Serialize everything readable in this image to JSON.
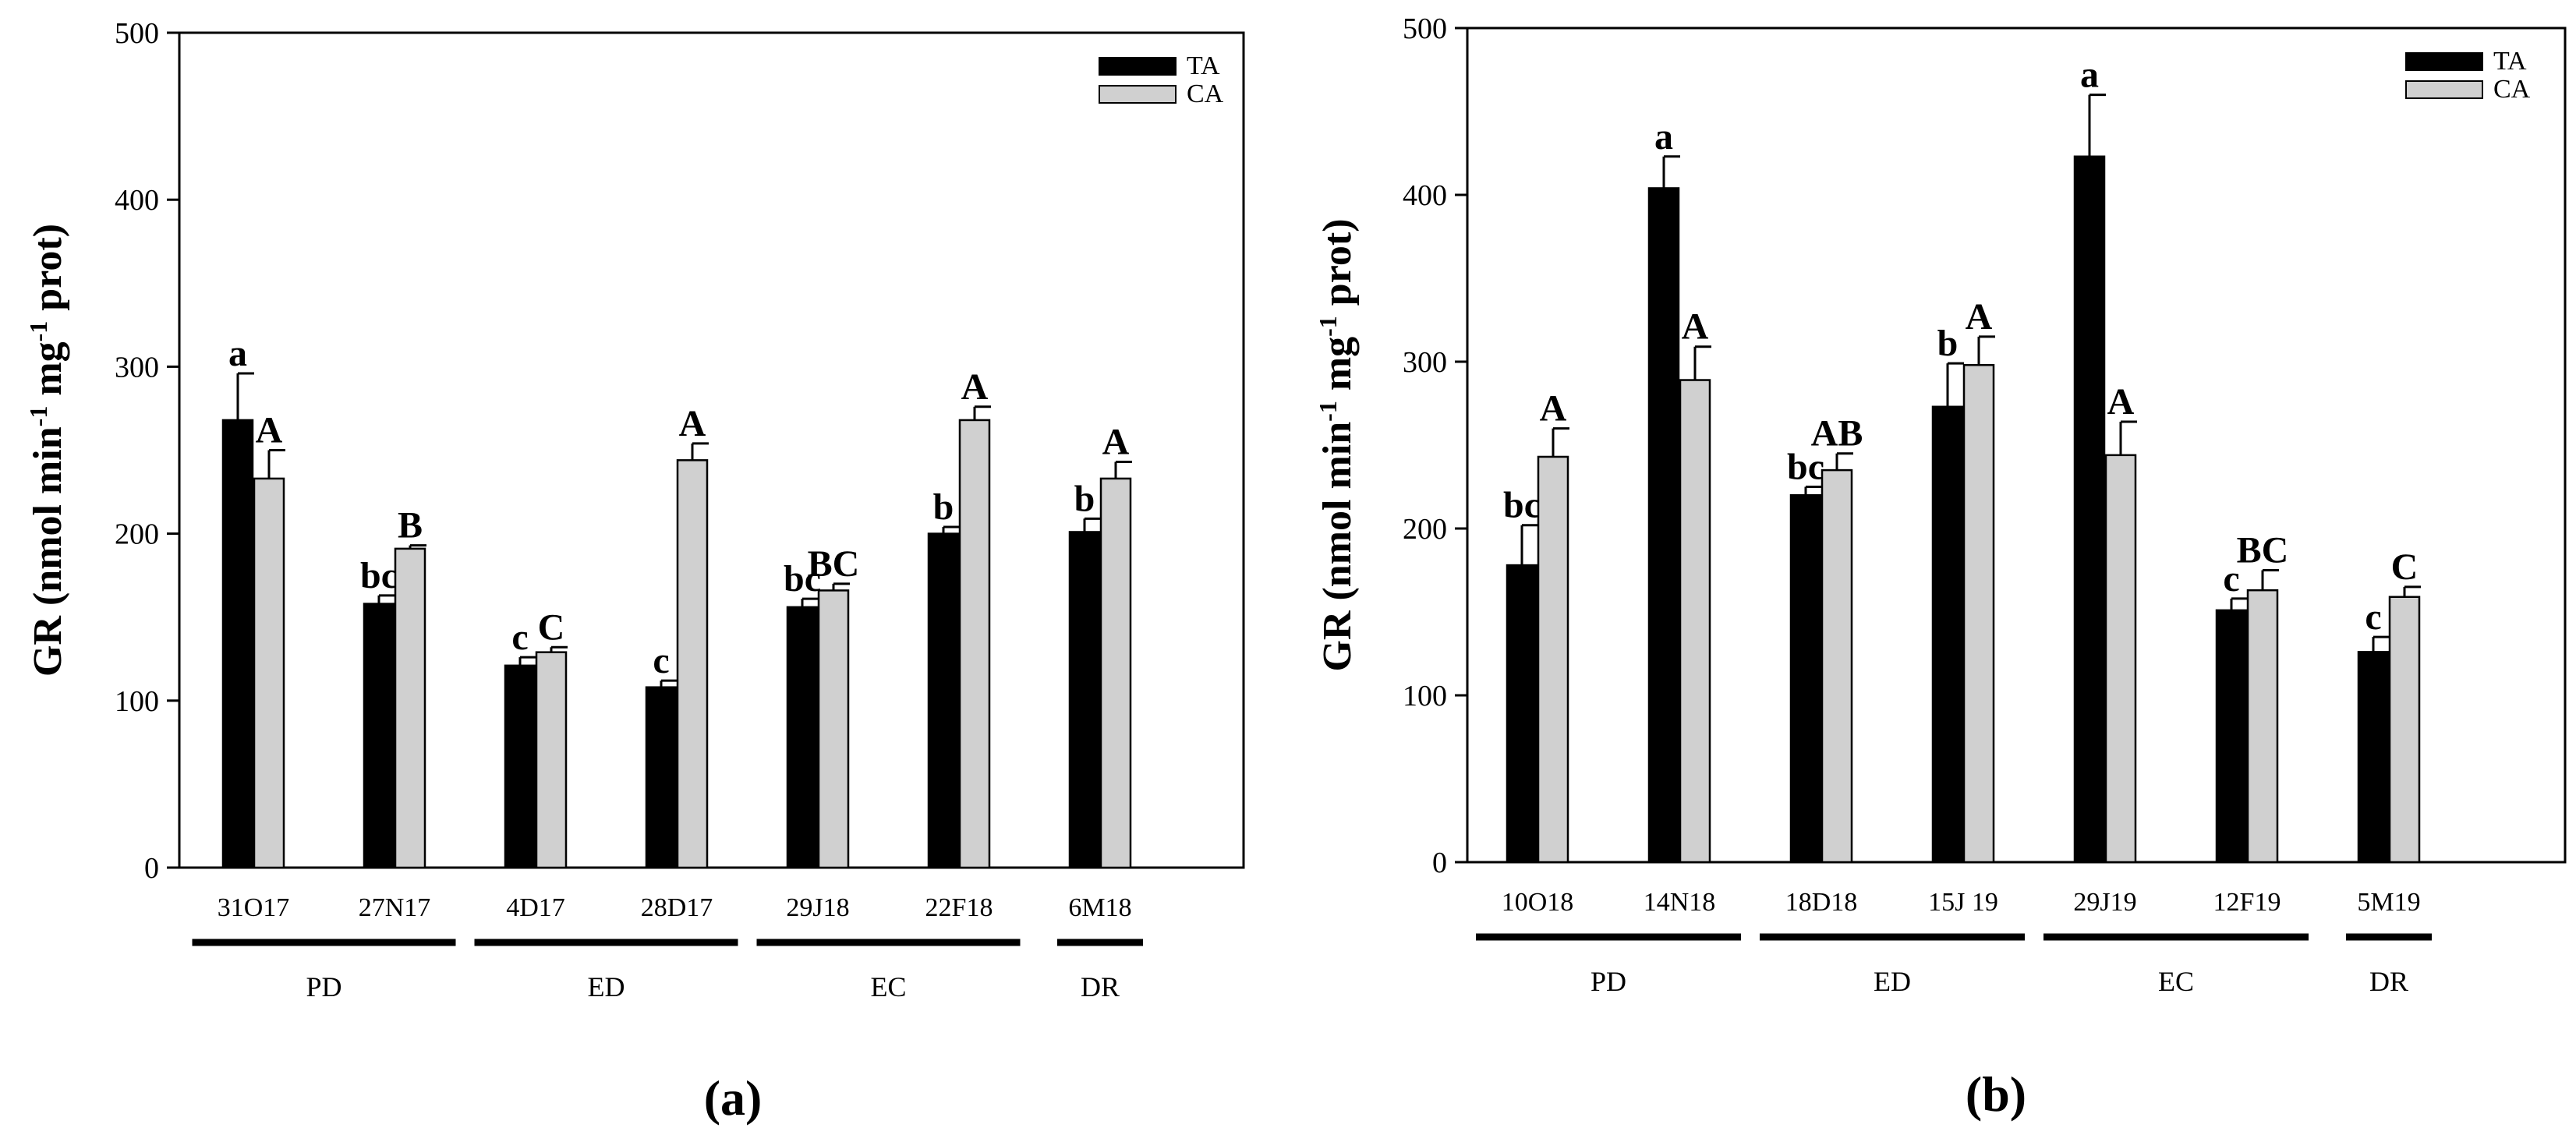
{
  "colors": {
    "TA": "#000000",
    "CA": "#d0d0d0"
  },
  "chart_data": [
    {
      "type": "bar",
      "panel_label": "(a)",
      "title": "",
      "xlabel": "",
      "ylabel": "GR (nmol min⁻¹ mg⁻¹ prot)",
      "ylabel_parts": {
        "a": "GR (nmol min",
        "b": "-1",
        "c": " mg",
        "d": "-1",
        "e": " prot)"
      },
      "ylim": [
        0,
        500
      ],
      "yticks": [
        "0",
        "100",
        "200",
        "300",
        "400",
        "500"
      ],
      "categories": [
        "31O17",
        "27N17",
        "4D17",
        "28D17",
        "29J18",
        "22F18",
        "6M18"
      ],
      "series": [
        {
          "name": "TA",
          "values": [
            268,
            158,
            121,
            108,
            156,
            200,
            201
          ],
          "errors": [
            28,
            5,
            5,
            4,
            5,
            4,
            8
          ],
          "labels": [
            "a",
            "bc",
            "c",
            "c",
            "bc",
            "b",
            "b"
          ]
        },
        {
          "name": "CA",
          "values": [
            233,
            191,
            129,
            244,
            166,
            268,
            233
          ],
          "errors": [
            17,
            2,
            3,
            10,
            4,
            8,
            10
          ],
          "labels": [
            "A",
            "B",
            "C",
            "A",
            "BC",
            "A",
            "A"
          ]
        }
      ],
      "groups": [
        {
          "label": "PD",
          "from": 0,
          "to": 1
        },
        {
          "label": "ED",
          "from": 2,
          "to": 3
        },
        {
          "label": "EC",
          "from": 4,
          "to": 5
        },
        {
          "label": "DR",
          "from": 6,
          "to": 6
        }
      ],
      "legend": "top-right"
    },
    {
      "type": "bar",
      "panel_label": "(b)",
      "title": "",
      "xlabel": "",
      "ylabel": "GR (nmol min⁻¹ mg⁻¹ prot)",
      "ylabel_parts": {
        "a": "GR (nmol min",
        "b": "-1",
        "c": " mg",
        "d": "-1",
        "e": " prot)"
      },
      "ylim": [
        0,
        500
      ],
      "yticks": [
        "0",
        "100",
        "200",
        "300",
        "400",
        "500"
      ],
      "categories": [
        "10O18",
        "14N18",
        "18D18",
        "15J 19",
        "29J19",
        "12F19",
        "5M19"
      ],
      "series": [
        {
          "name": "TA",
          "values": [
            178,
            404,
            220,
            273,
            423,
            151,
            126
          ],
          "errors": [
            24,
            19,
            5,
            26,
            37,
            7,
            9
          ],
          "labels": [
            "bc",
            "a",
            "bc",
            "b",
            "a",
            "c",
            "c"
          ]
        },
        {
          "name": "CA",
          "values": [
            243,
            289,
            235,
            298,
            244,
            163,
            159
          ],
          "errors": [
            17,
            20,
            10,
            17,
            20,
            12,
            6
          ],
          "labels": [
            "A",
            "A",
            "AB",
            "A",
            "A",
            "BC",
            "C"
          ]
        }
      ],
      "groups": [
        {
          "label": "PD",
          "from": 0,
          "to": 1
        },
        {
          "label": "ED",
          "from": 2,
          "to": 3
        },
        {
          "label": "EC",
          "from": 4,
          "to": 5
        },
        {
          "label": "DR",
          "from": 6,
          "to": 6
        }
      ],
      "legend": "top-right"
    }
  ]
}
